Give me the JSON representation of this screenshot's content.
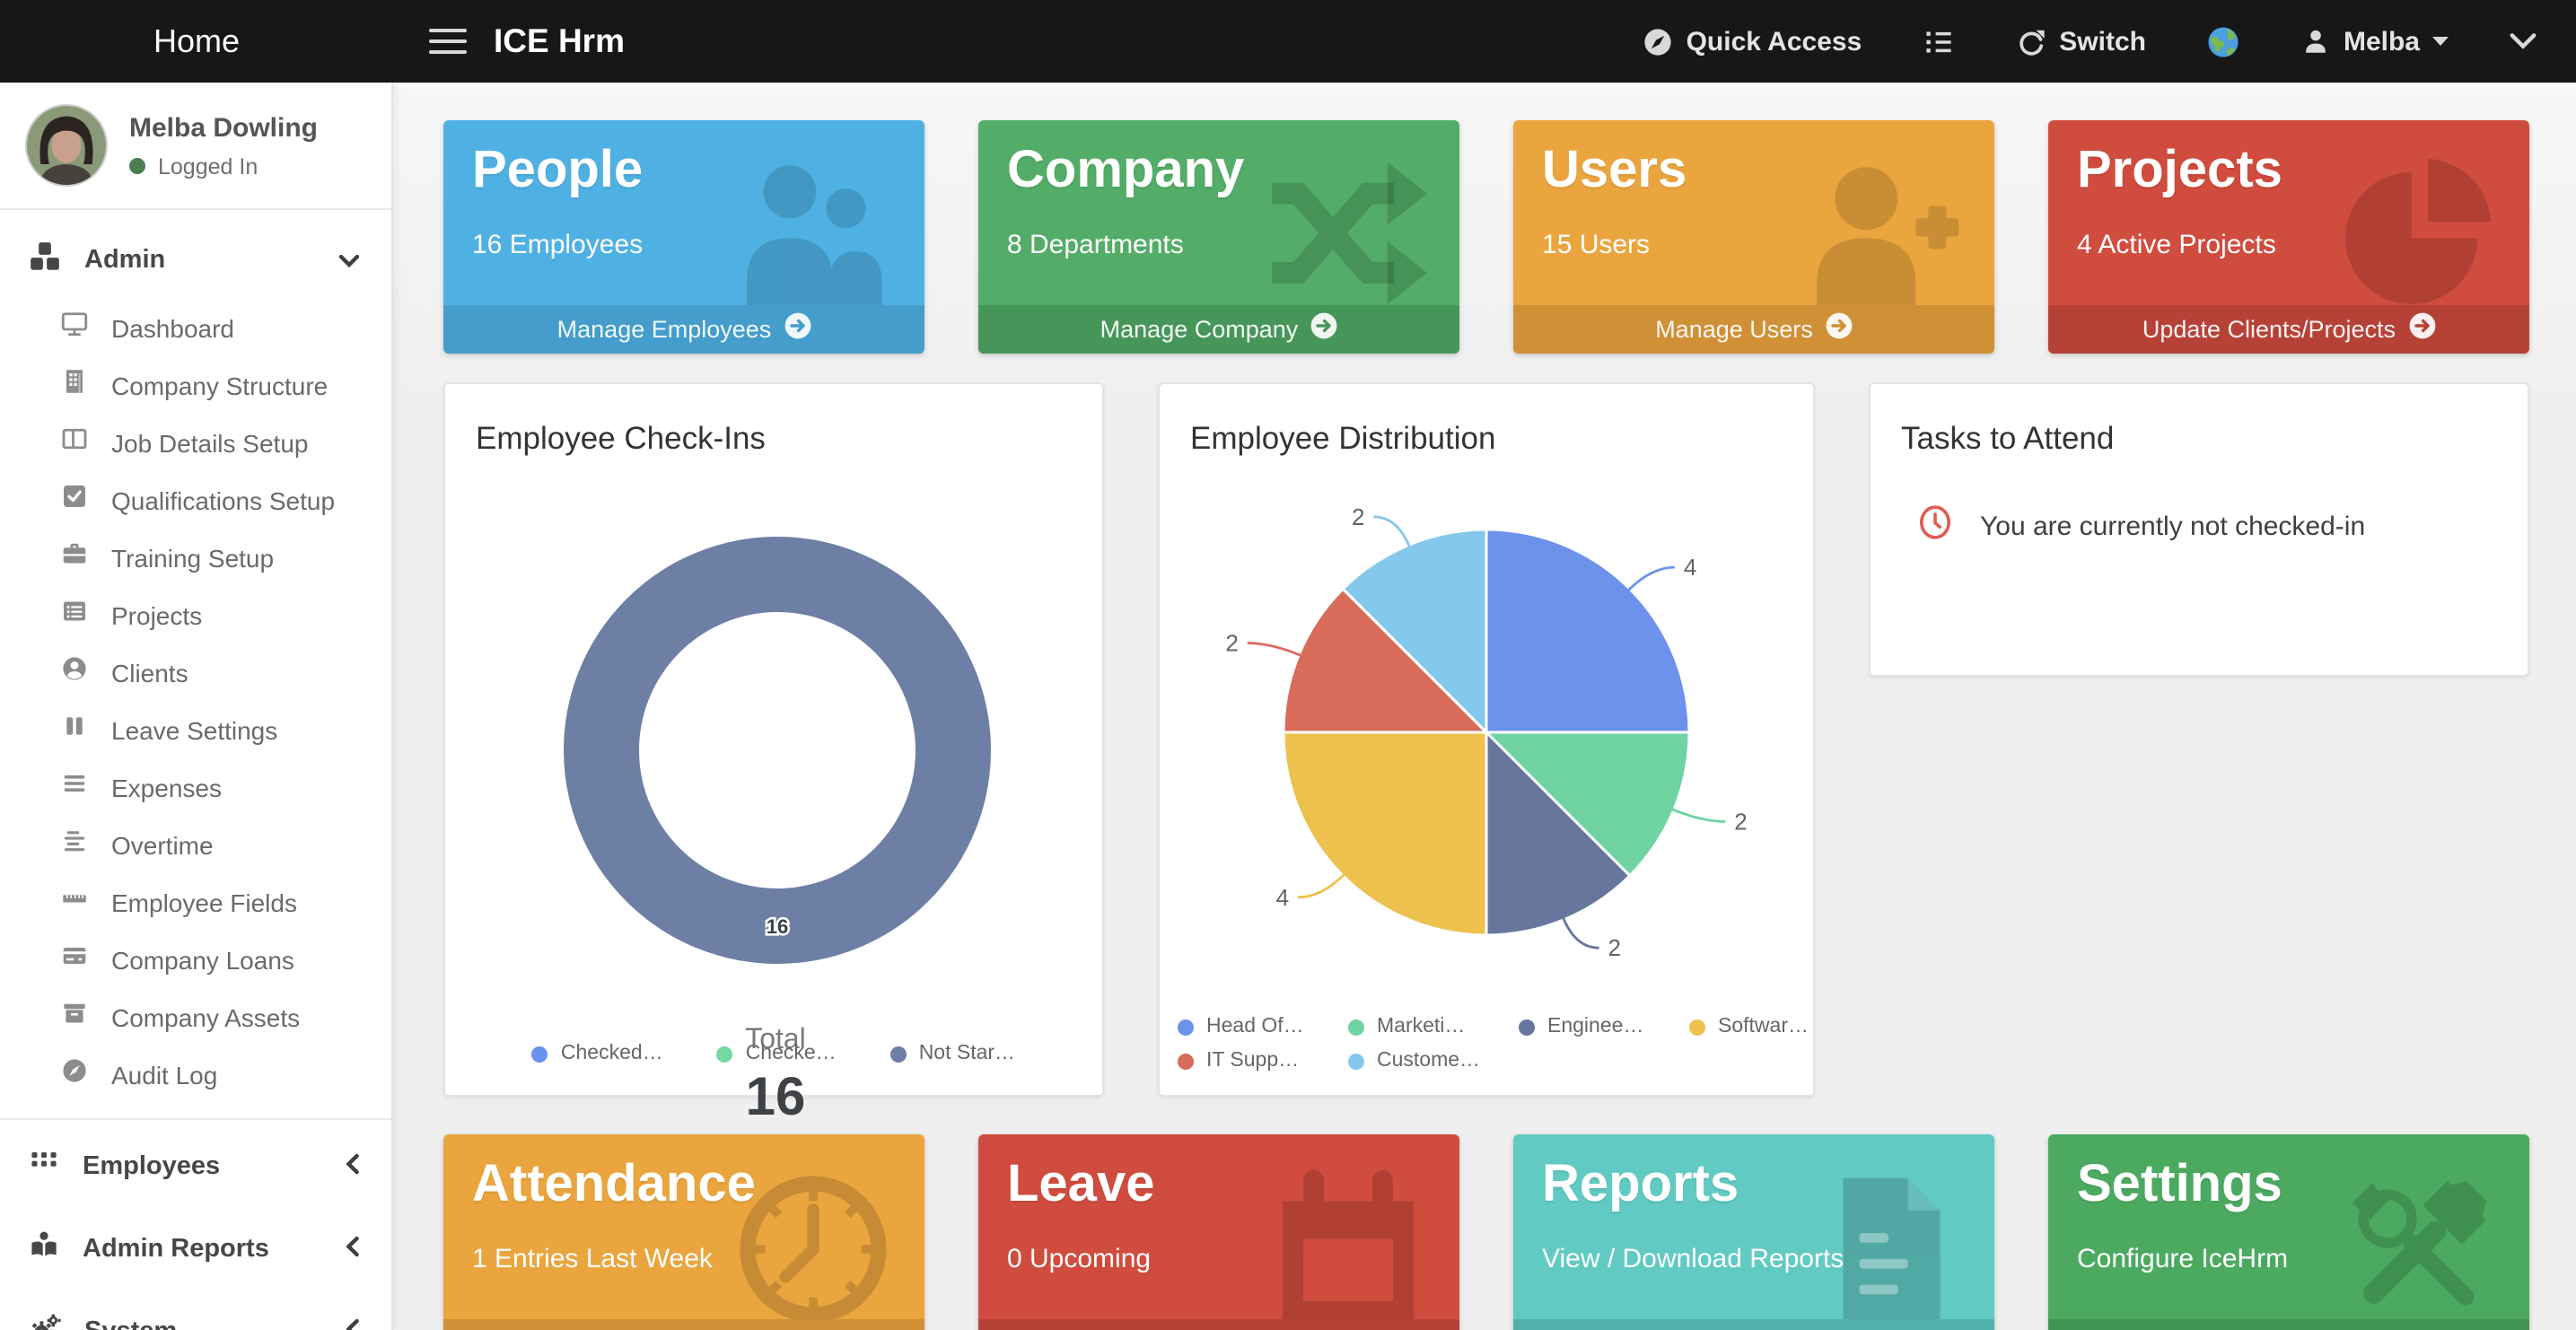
{
  "navbar": {
    "home": "Home",
    "brand": "ICE Hrm",
    "quick_access": "Quick Access",
    "switch_label": "Switch",
    "username": "Melba"
  },
  "sidebar": {
    "profile": {
      "name": "Melba Dowling",
      "status": "Logged In"
    },
    "admin_group": {
      "label": "Admin",
      "items": [
        {
          "label": "Dashboard"
        },
        {
          "label": "Company Structure"
        },
        {
          "label": "Job Details Setup"
        },
        {
          "label": "Qualifications Setup"
        },
        {
          "label": "Training Setup"
        },
        {
          "label": "Projects"
        },
        {
          "label": "Clients"
        },
        {
          "label": "Leave Settings"
        },
        {
          "label": "Expenses"
        },
        {
          "label": "Overtime"
        },
        {
          "label": "Employee Fields"
        },
        {
          "label": "Company Loans"
        },
        {
          "label": "Company Assets"
        },
        {
          "label": "Audit Log"
        }
      ]
    },
    "groups": [
      {
        "label": "Employees"
      },
      {
        "label": "Admin Reports"
      },
      {
        "label": "System"
      }
    ]
  },
  "summary_cards": [
    {
      "title": "People",
      "subtitle": "16 Employees",
      "action": "Manage Employees",
      "color": "#4fb1e3",
      "color_dark": "#449dcb"
    },
    {
      "title": "Company",
      "subtitle": "8 Departments",
      "action": "Manage Company",
      "color": "#53ad68",
      "color_dark": "#479659"
    },
    {
      "title": "Users",
      "subtitle": "15 Users",
      "action": "Manage Users",
      "color": "#eaa53e",
      "color_dark": "#cf9036"
    },
    {
      "title": "Projects",
      "subtitle": "4 Active Projects",
      "action": "Update Clients/Projects",
      "color": "#d04c3e",
      "color_dark": "#b64237"
    }
  ],
  "tasks_card": {
    "title": "Tasks to Attend",
    "message": "You are currently not checked-in"
  },
  "bottom_cards": [
    {
      "title": "Attendance",
      "subtitle": "1 Entries Last Week",
      "color": "#eaa53e",
      "color_dark": "#cf9036"
    },
    {
      "title": "Leave",
      "subtitle": "0 Upcoming",
      "color": "#d04c3e",
      "color_dark": "#b64237"
    },
    {
      "title": "Reports",
      "subtitle": "View / Download Reports",
      "color": "#61cac3",
      "color_dark": "#4fb1aa"
    },
    {
      "title": "Settings",
      "subtitle": "Configure IceHrm",
      "color": "#4caa60",
      "color_dark": "#419353"
    }
  ],
  "chart_data": [
    {
      "type": "donut",
      "title": "Employee Check-Ins",
      "labels": [
        "Checked…",
        "Checke…",
        "Not Star…"
      ],
      "values": [
        0,
        0,
        16
      ],
      "colors": [
        "#6a90f0",
        "#74d9a4",
        "#6e7fa6"
      ],
      "center_label": "Total",
      "center_value": "16",
      "legend_position": "bottom",
      "total": 16
    },
    {
      "type": "pie",
      "title": "Employee Distribution",
      "labels": [
        "Head Of…",
        "Marketi…",
        "Enginee…",
        "Softwar…",
        "IT Supp…",
        "Custome…"
      ],
      "legend_colors": [
        "#6c92ec",
        "#6fd3a2",
        "#67769d",
        "#ecc14e",
        "#d96b5b",
        "#85c8ec"
      ],
      "slices": [
        {
          "value": 4,
          "color": "#6c92ec"
        },
        {
          "value": 2,
          "color": "#6fd3a2"
        },
        {
          "value": 2,
          "color": "#67769d"
        },
        {
          "value": 4,
          "color": "#ecc14e"
        },
        {
          "value": 2,
          "color": "#d96b5b"
        },
        {
          "value": 2,
          "color": "#85c8ec"
        }
      ],
      "start_angle": "top",
      "direction": "clockwise",
      "total": 16,
      "legend_position": "bottom"
    }
  ]
}
